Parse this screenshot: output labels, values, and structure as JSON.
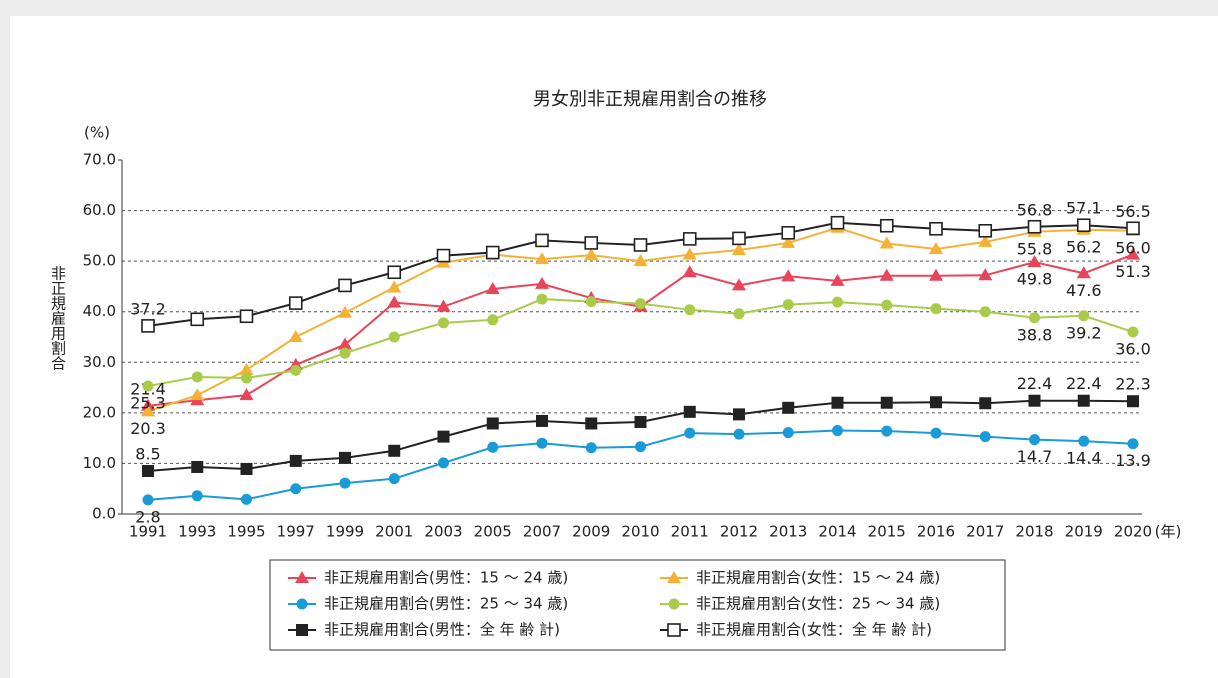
{
  "chart_data": {
    "type": "line",
    "title": "男女別非正規雇用割合の推移",
    "y_unit": "(%)",
    "y_label": "非正規雇用割合",
    "x_unit": "(年)",
    "categories": [
      "1991",
      "1993",
      "1995",
      "1997",
      "1999",
      "2001",
      "2003",
      "2005",
      "2007",
      "2009",
      "2010",
      "2011",
      "2012",
      "2013",
      "2014",
      "2015",
      "2016",
      "2017",
      "2018",
      "2019",
      "2020"
    ],
    "ylim": [
      0,
      70
    ],
    "yticks": [
      {
        "value": 0,
        "label": "0.0"
      },
      {
        "value": 10,
        "label": "10.0"
      },
      {
        "value": 20,
        "label": "20.0"
      },
      {
        "value": 30,
        "label": "30.0"
      },
      {
        "value": 40,
        "label": "40.0"
      },
      {
        "value": 50,
        "label": "50.0"
      },
      {
        "value": 60,
        "label": "60.0"
      },
      {
        "value": 70,
        "label": "70.0"
      }
    ],
    "grid": true,
    "series": [
      {
        "name": "非正規雇用割合(男性：15 ～ 24 歳)",
        "color": "#e8445a",
        "marker": "triangle",
        "values": [
          21.4,
          22.5,
          23.5,
          29.5,
          33.5,
          41.8,
          41.0,
          44.5,
          45.5,
          42.7,
          41.0,
          47.8,
          45.2,
          47.0,
          46.1,
          47.1,
          47.1,
          47.2,
          49.8,
          47.6,
          51.3
        ],
        "value_labels": [
          "21.4",
          null,
          null,
          null,
          null,
          null,
          null,
          null,
          null,
          null,
          null,
          null,
          null,
          null,
          null,
          null,
          null,
          null,
          "49.8",
          "47.6",
          "51.3"
        ]
      },
      {
        "name": "非正規雇用割合(女性：15 ～ 24 歳)",
        "color": "#f5b133",
        "marker": "triangle",
        "values": [
          20.3,
          23.5,
          28.5,
          35.0,
          39.8,
          44.8,
          49.7,
          51.3,
          50.4,
          51.2,
          50.0,
          51.3,
          52.2,
          53.6,
          56.6,
          53.5,
          52.4,
          53.8,
          55.8,
          56.2,
          56.0
        ],
        "value_labels": [
          "20.3",
          null,
          null,
          null,
          null,
          null,
          null,
          null,
          null,
          null,
          null,
          null,
          null,
          null,
          null,
          null,
          null,
          null,
          "55.8",
          "56.2",
          "56.0"
        ]
      },
      {
        "name": "非正規雇用割合(男性：25 ～ 34 歳)",
        "color": "#1a9ad6",
        "marker": "circle",
        "values": [
          2.8,
          3.6,
          2.9,
          5.0,
          6.1,
          7.0,
          10.1,
          13.2,
          14.0,
          13.1,
          13.3,
          16.0,
          15.8,
          16.1,
          16.5,
          16.4,
          16.0,
          15.3,
          14.7,
          14.4,
          13.9
        ],
        "value_labels": [
          "2.8",
          null,
          null,
          null,
          null,
          null,
          null,
          null,
          null,
          null,
          null,
          null,
          null,
          null,
          null,
          null,
          null,
          null,
          "14.7",
          "14.4",
          "13.9"
        ]
      },
      {
        "name": "非正規雇用割合(女性：25 ～ 34 歳)",
        "color": "#a8cc4a",
        "marker": "circle",
        "values": [
          25.3,
          27.1,
          26.9,
          28.4,
          31.8,
          35.0,
          37.8,
          38.4,
          42.5,
          42.0,
          41.6,
          40.4,
          39.6,
          41.4,
          41.9,
          41.3,
          40.6,
          40.0,
          38.8,
          39.2,
          36.0
        ],
        "value_labels": [
          "25.3",
          null,
          null,
          null,
          null,
          null,
          null,
          null,
          null,
          null,
          null,
          null,
          null,
          null,
          null,
          null,
          null,
          null,
          "38.8",
          "39.2",
          "36.0"
        ]
      },
      {
        "name": "非正規雇用割合(男性：全 年 齢 計)",
        "color": "#222222",
        "marker": "square",
        "values": [
          8.5,
          9.3,
          8.9,
          10.5,
          11.1,
          12.5,
          15.3,
          17.9,
          18.4,
          17.9,
          18.2,
          20.2,
          19.7,
          21.0,
          22.0,
          22.0,
          22.1,
          21.9,
          22.4,
          22.4,
          22.3
        ],
        "value_labels": [
          "8.5",
          null,
          null,
          null,
          null,
          null,
          null,
          null,
          null,
          null,
          null,
          null,
          null,
          null,
          null,
          null,
          null,
          null,
          "22.4",
          "22.4",
          "22.3"
        ]
      },
      {
        "name": "非正規雇用割合(女性：全 年 齢 計)",
        "color": "#222222",
        "marker": "open-square",
        "values": [
          37.2,
          38.5,
          39.1,
          41.7,
          45.2,
          47.8,
          51.1,
          51.7,
          54.1,
          53.6,
          53.2,
          54.4,
          54.5,
          55.6,
          57.6,
          57.0,
          56.4,
          56.0,
          56.8,
          57.1,
          56.5
        ],
        "value_labels": [
          "37.2",
          null,
          null,
          null,
          null,
          null,
          null,
          null,
          null,
          null,
          null,
          null,
          null,
          null,
          null,
          null,
          null,
          null,
          "56.8",
          "57.1",
          "56.5"
        ]
      }
    ]
  }
}
